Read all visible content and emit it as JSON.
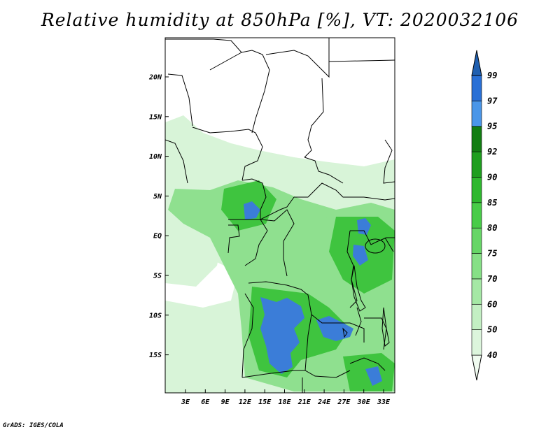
{
  "title": "Relative humidity at 850hPa [%], VT: 2020032106",
  "credit": "GrADS: IGES/COLA",
  "map": {
    "lat_labels": [
      "20N",
      "15N",
      "10N",
      "5N",
      "EQ",
      "5S",
      "10S",
      "15S"
    ],
    "lon_labels": [
      "3E",
      "6E",
      "9E",
      "12E",
      "15E",
      "18E",
      "21E",
      "24E",
      "27E",
      "30E",
      "33E"
    ]
  },
  "colorbar": {
    "levels": [
      "40",
      "50",
      "60",
      "70",
      "75",
      "80",
      "85",
      "90",
      "92",
      "95",
      "97",
      "99"
    ],
    "colors": [
      "#f0fbf0",
      "#dcf5dc",
      "#c3efc3",
      "#a5e8a5",
      "#86e086",
      "#66d666",
      "#48cc48",
      "#2eb82e",
      "#1e9e1e",
      "#117d11",
      "#4a96e8",
      "#2970d6",
      "#1f5fb0"
    ]
  },
  "palette": {
    "humid_light": "#d8f4d8",
    "humid_mid": "#8fe08f",
    "humid_high": "#3fc43f",
    "saturated": "#3b7dd8",
    "border": "#000000",
    "dry": "#ffffff"
  }
}
